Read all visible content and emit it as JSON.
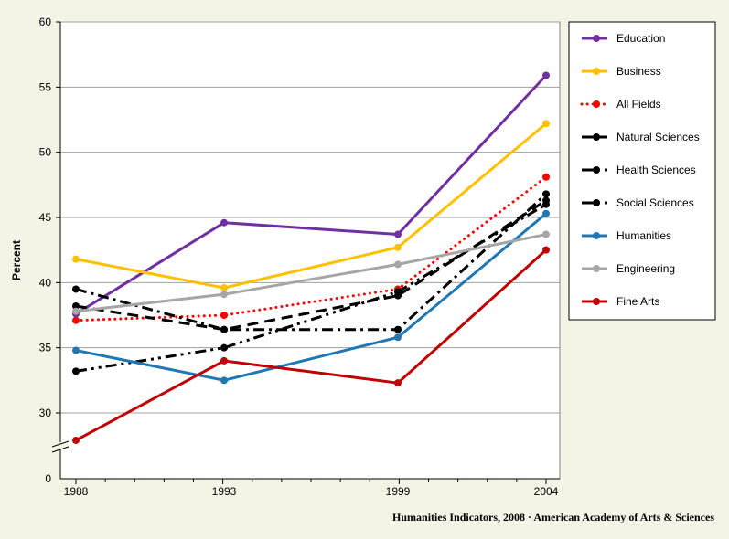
{
  "chart_data": {
    "type": "line",
    "title": "",
    "xlabel": "",
    "ylabel": "Percent",
    "x": [
      "1988",
      "1993",
      "1999",
      "2004"
    ],
    "ylim": [
      25,
      60
    ],
    "y_ticks": [
      "30",
      "35",
      "40",
      "45",
      "50",
      "55",
      "60"
    ],
    "y_origin_label": "0",
    "axis_break": true,
    "grid": true,
    "legend_position": "right",
    "series": [
      {
        "name": "Education",
        "values": [
          37.6,
          44.6,
          43.7,
          55.9
        ],
        "color": "#7030a0",
        "style": "solid"
      },
      {
        "name": "Business",
        "values": [
          41.8,
          39.6,
          42.7,
          52.2
        ],
        "color": "#ffc000",
        "style": "solid"
      },
      {
        "name": "All Fields",
        "values": [
          37.1,
          37.5,
          39.5,
          48.1
        ],
        "color": "#ff0000",
        "style": "dotted"
      },
      {
        "name": "Natural Sciences",
        "values": [
          38.2,
          36.4,
          39.0,
          46.3
        ],
        "color": "#000000",
        "style": "dashed"
      },
      {
        "name": "Health Sciences",
        "values": [
          39.5,
          36.4,
          36.4,
          46.8
        ],
        "color": "#000000",
        "style": "dash-dot"
      },
      {
        "name": "Social Sciences",
        "values": [
          33.2,
          35.0,
          39.3,
          46.0
        ],
        "color": "#000000",
        "style": "dash-dot-dot"
      },
      {
        "name": "Humanities",
        "values": [
          34.8,
          32.5,
          35.8,
          45.3
        ],
        "color": "#1f77b4",
        "style": "solid"
      },
      {
        "name": "Engineering",
        "values": [
          37.8,
          39.1,
          41.4,
          43.7
        ],
        "color": "#a6a6a6",
        "style": "solid"
      },
      {
        "name": "Fine Arts",
        "values": [
          27.9,
          34.0,
          32.3,
          42.5
        ],
        "color": "#c00000",
        "style": "solid"
      }
    ]
  },
  "credit": "Humanities Indicators, 2008 · American Academy of Arts & Sciences"
}
